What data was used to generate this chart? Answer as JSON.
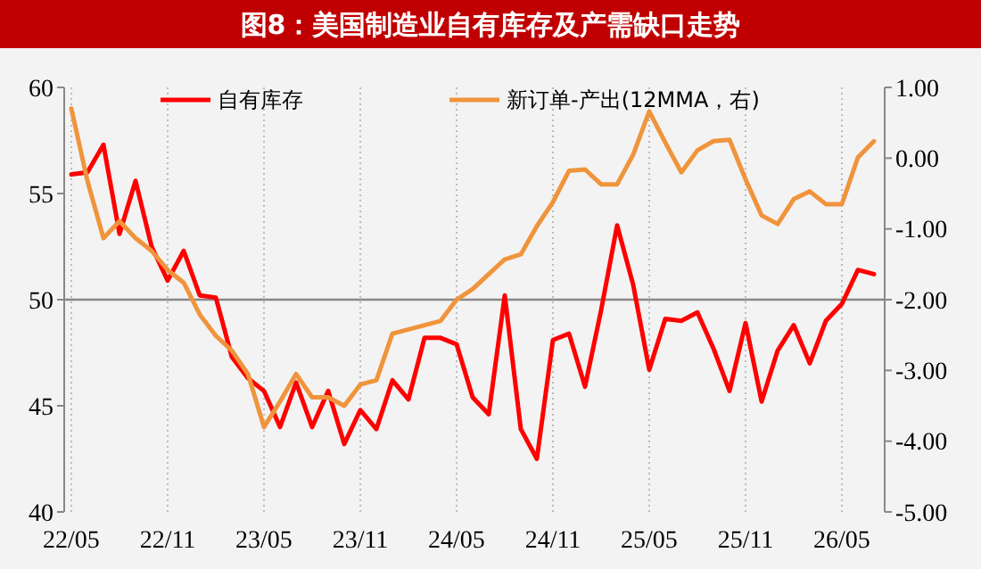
{
  "chart_data": {
    "type": "line",
    "title": "图8：美国制造业自有库存及产需缺口走势",
    "categories": [
      "22/05",
      null,
      null,
      null,
      null,
      null,
      "22/11",
      null,
      null,
      null,
      null,
      null,
      "23/05",
      null,
      null,
      null,
      null,
      null,
      "23/11",
      null,
      null,
      null,
      null,
      null,
      "24/05",
      null,
      null,
      null,
      null,
      null,
      "24/11",
      null,
      null,
      null,
      null,
      null,
      "25/05",
      null,
      null,
      null,
      null,
      null,
      "25/11",
      null,
      null,
      null,
      null,
      null,
      "26/05",
      null,
      null
    ],
    "series": [
      {
        "name": "自有库存",
        "color": "#ff0000",
        "values": [
          55.9,
          56.0,
          57.3,
          53.1,
          55.6,
          52.5,
          50.9,
          52.3,
          50.2,
          50.1,
          47.3,
          46.3,
          45.7,
          44.0,
          46.1,
          44.0,
          45.7,
          43.2,
          44.8,
          43.9,
          46.2,
          45.3,
          48.2,
          48.2,
          47.9,
          45.4,
          44.6,
          50.2,
          43.9,
          42.5,
          48.1,
          48.4,
          45.9,
          49.5,
          53.5,
          50.7,
          46.7,
          49.1,
          49.0,
          49.4,
          47.7,
          45.7,
          48.9,
          45.2,
          47.6,
          48.8,
          47.0,
          49.0,
          49.8,
          51.4,
          51.2
        ]
      },
      {
        "name": "新订单-产出(12MMA，右)",
        "color": "#f0943c",
        "axis": "y2",
        "values": [
          0.7,
          -0.32,
          -1.13,
          -0.89,
          -1.13,
          -1.31,
          -1.58,
          -1.76,
          -2.21,
          -2.51,
          -2.72,
          -3.05,
          -3.8,
          -3.44,
          -3.05,
          -3.38,
          -3.38,
          -3.5,
          -3.2,
          -3.14,
          -2.48,
          -2.42,
          -2.36,
          -2.3,
          -2.0,
          -1.85,
          -1.64,
          -1.43,
          -1.36,
          -0.96,
          -0.62,
          -0.18,
          -0.16,
          -0.37,
          -0.37,
          0.05,
          0.66,
          0.22,
          -0.2,
          0.11,
          0.24,
          0.26,
          -0.3,
          -0.81,
          -0.93,
          -0.58,
          -0.47,
          -0.65,
          -0.65,
          0.01,
          0.24
        ]
      }
    ],
    "ylim": [
      40,
      60
    ],
    "yticks": [
      40,
      45,
      50,
      55,
      60
    ],
    "y2lim": [
      -5,
      1
    ],
    "y2ticks": [
      {
        "value": -5,
        "label": "-5.00"
      },
      {
        "value": -4,
        "label": "-4.00"
      },
      {
        "value": -3,
        "label": "-3.00"
      },
      {
        "value": -2,
        "label": "-2.00"
      },
      {
        "value": -1,
        "label": "-1.00"
      },
      {
        "value": 0,
        "label": "0.00"
      },
      {
        "value": 1,
        "label": "1.00"
      }
    ],
    "ref_lines": [
      {
        "axis": "y",
        "value": 50,
        "color": "#888888"
      }
    ],
    "grid": "x",
    "legend": "top",
    "marker": "none",
    "line_style": "solid"
  }
}
